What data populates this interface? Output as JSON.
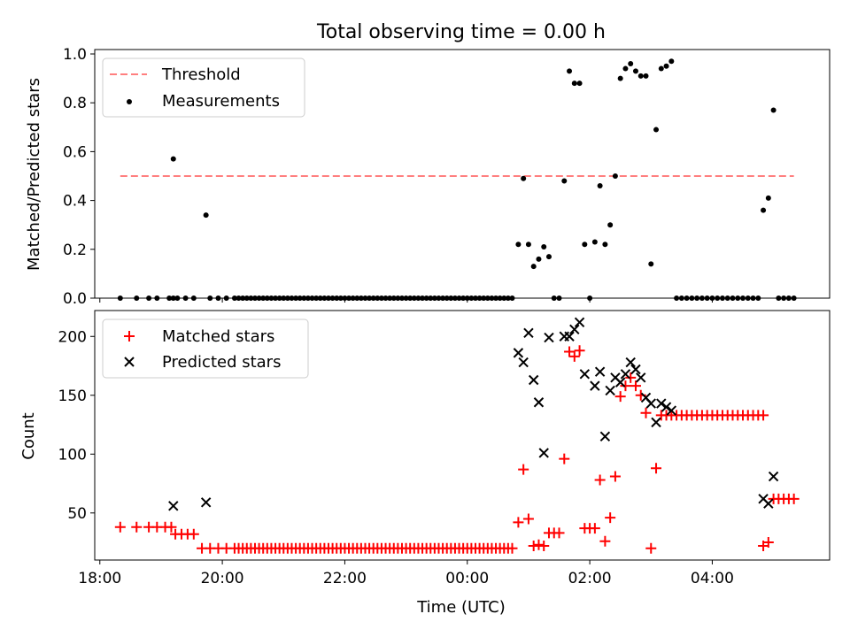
{
  "chart_data": {
    "title": "Total observing time = 0.00 h",
    "xlabel": "Time (UTC)",
    "x_ticks": [
      "18:00",
      "20:00",
      "22:00",
      "00:00",
      "02:00",
      "04:00"
    ],
    "top": {
      "type": "scatter",
      "ylabel": "Matched/Predicted stars",
      "ylim": [
        0,
        1.0
      ],
      "y_ticks": [
        "0.0",
        "0.2",
        "0.4",
        "0.6",
        "0.8",
        "1.0"
      ],
      "legend_position": "upper left",
      "legend": {
        "threshold": "Threshold",
        "measurements": "Measurements"
      },
      "threshold": {
        "value": 0.5,
        "x_start": "18:20",
        "x_end": "05:20",
        "color": "#ff7f7f"
      },
      "measurements": [
        [
          "18:20",
          0
        ],
        [
          "18:36",
          0
        ],
        [
          "18:48",
          0
        ],
        [
          "18:56",
          0
        ],
        [
          "19:08",
          0
        ],
        [
          "19:12",
          0
        ],
        [
          "19:16",
          0
        ],
        [
          "19:12",
          0.57
        ],
        [
          "19:24",
          0
        ],
        [
          "19:32",
          0
        ],
        [
          "19:44",
          0.34
        ],
        [
          "19:48",
          0
        ],
        [
          "19:56",
          0
        ],
        [
          "20:04",
          0
        ],
        [
          "20:12",
          0
        ],
        [
          "20:16",
          0
        ],
        [
          "20:20",
          0
        ],
        [
          "20:24",
          0
        ],
        [
          "20:28",
          0
        ],
        [
          "20:32",
          0
        ],
        [
          "20:36",
          0
        ],
        [
          "20:40",
          0
        ],
        [
          "20:44",
          0
        ],
        [
          "20:48",
          0
        ],
        [
          "20:52",
          0
        ],
        [
          "20:56",
          0
        ],
        [
          "21:00",
          0
        ],
        [
          "21:04",
          0
        ],
        [
          "21:08",
          0
        ],
        [
          "21:12",
          0
        ],
        [
          "21:16",
          0
        ],
        [
          "21:20",
          0
        ],
        [
          "21:24",
          0
        ],
        [
          "21:28",
          0
        ],
        [
          "21:32",
          0
        ],
        [
          "21:36",
          0
        ],
        [
          "21:40",
          0
        ],
        [
          "21:44",
          0
        ],
        [
          "21:48",
          0
        ],
        [
          "21:52",
          0
        ],
        [
          "21:56",
          0
        ],
        [
          "22:00",
          0
        ],
        [
          "22:04",
          0
        ],
        [
          "22:08",
          0
        ],
        [
          "22:12",
          0
        ],
        [
          "22:16",
          0
        ],
        [
          "22:20",
          0
        ],
        [
          "22:24",
          0
        ],
        [
          "22:28",
          0
        ],
        [
          "22:32",
          0
        ],
        [
          "22:36",
          0
        ],
        [
          "22:40",
          0
        ],
        [
          "22:44",
          0
        ],
        [
          "22:48",
          0
        ],
        [
          "22:52",
          0
        ],
        [
          "22:56",
          0
        ],
        [
          "23:00",
          0
        ],
        [
          "23:04",
          0
        ],
        [
          "23:08",
          0
        ],
        [
          "23:12",
          0
        ],
        [
          "23:16",
          0
        ],
        [
          "23:20",
          0
        ],
        [
          "23:24",
          0
        ],
        [
          "23:28",
          0
        ],
        [
          "23:32",
          0
        ],
        [
          "23:36",
          0
        ],
        [
          "23:40",
          0
        ],
        [
          "23:44",
          0
        ],
        [
          "23:48",
          0
        ],
        [
          "23:52",
          0
        ],
        [
          "23:56",
          0
        ],
        [
          "00:00",
          0
        ],
        [
          "00:04",
          0
        ],
        [
          "00:08",
          0
        ],
        [
          "00:12",
          0
        ],
        [
          "00:16",
          0
        ],
        [
          "00:20",
          0
        ],
        [
          "00:24",
          0
        ],
        [
          "00:28",
          0
        ],
        [
          "00:32",
          0
        ],
        [
          "00:36",
          0
        ],
        [
          "00:40",
          0
        ],
        [
          "00:44",
          0
        ],
        [
          "00:50",
          0.22
        ],
        [
          "00:55",
          0.49
        ],
        [
          "01:00",
          0.22
        ],
        [
          "01:05",
          0.13
        ],
        [
          "01:10",
          0.16
        ],
        [
          "01:15",
          0.21
        ],
        [
          "01:20",
          0.17
        ],
        [
          "01:25",
          0
        ],
        [
          "01:30",
          0
        ],
        [
          "01:35",
          0.48
        ],
        [
          "01:40",
          0.93
        ],
        [
          "01:45",
          0.88
        ],
        [
          "01:50",
          0.88
        ],
        [
          "01:55",
          0.22
        ],
        [
          "02:00",
          0
        ],
        [
          "02:05",
          0.23
        ],
        [
          "02:10",
          0.46
        ],
        [
          "02:15",
          0.22
        ],
        [
          "02:20",
          0.3
        ],
        [
          "02:25",
          0.5
        ],
        [
          "02:30",
          0.9
        ],
        [
          "02:35",
          0.94
        ],
        [
          "02:40",
          0.96
        ],
        [
          "02:45",
          0.93
        ],
        [
          "02:50",
          0.91
        ],
        [
          "02:55",
          0.91
        ],
        [
          "03:00",
          0.14
        ],
        [
          "03:05",
          0.69
        ],
        [
          "03:10",
          0.94
        ],
        [
          "03:15",
          0.95
        ],
        [
          "03:20",
          0.97
        ],
        [
          "03:25",
          0
        ],
        [
          "03:30",
          0
        ],
        [
          "03:35",
          0
        ],
        [
          "03:40",
          0
        ],
        [
          "03:45",
          0
        ],
        [
          "03:50",
          0
        ],
        [
          "03:55",
          0
        ],
        [
          "04:00",
          0
        ],
        [
          "04:05",
          0
        ],
        [
          "04:10",
          0
        ],
        [
          "04:15",
          0
        ],
        [
          "04:20",
          0
        ],
        [
          "04:25",
          0
        ],
        [
          "04:30",
          0
        ],
        [
          "04:35",
          0
        ],
        [
          "04:40",
          0
        ],
        [
          "04:45",
          0
        ],
        [
          "04:50",
          0.36
        ],
        [
          "04:55",
          0.41
        ],
        [
          "05:00",
          0.77
        ],
        [
          "05:05",
          0
        ],
        [
          "05:10",
          0
        ],
        [
          "05:15",
          0
        ],
        [
          "05:20",
          0
        ]
      ]
    },
    "bottom": {
      "type": "scatter",
      "ylabel": "Count",
      "ylim": [
        10,
        222
      ],
      "y_ticks": [
        "50",
        "100",
        "150",
        "200"
      ],
      "legend_position": "upper left",
      "legend": {
        "matched": "Matched stars",
        "predicted": "Predicted stars"
      },
      "colors": {
        "matched": "#ff0000",
        "predicted": "#000000"
      },
      "matched": [
        [
          "18:20",
          38
        ],
        [
          "18:36",
          38
        ],
        [
          "18:48",
          38
        ],
        [
          "18:56",
          38
        ],
        [
          "19:04",
          38
        ],
        [
          "19:10",
          38
        ],
        [
          "19:14",
          32
        ],
        [
          "19:20",
          32
        ],
        [
          "19:26",
          32
        ],
        [
          "19:32",
          32
        ],
        [
          "19:40",
          20
        ],
        [
          "19:48",
          20
        ],
        [
          "19:56",
          20
        ],
        [
          "20:04",
          20
        ],
        [
          "20:12",
          20
        ],
        [
          "20:16",
          20
        ],
        [
          "20:20",
          20
        ],
        [
          "20:24",
          20
        ],
        [
          "20:28",
          20
        ],
        [
          "20:32",
          20
        ],
        [
          "20:36",
          20
        ],
        [
          "20:40",
          20
        ],
        [
          "20:44",
          20
        ],
        [
          "20:48",
          20
        ],
        [
          "20:52",
          20
        ],
        [
          "20:56",
          20
        ],
        [
          "21:00",
          20
        ],
        [
          "21:04",
          20
        ],
        [
          "21:08",
          20
        ],
        [
          "21:12",
          20
        ],
        [
          "21:16",
          20
        ],
        [
          "21:20",
          20
        ],
        [
          "21:24",
          20
        ],
        [
          "21:28",
          20
        ],
        [
          "21:32",
          20
        ],
        [
          "21:36",
          20
        ],
        [
          "21:40",
          20
        ],
        [
          "21:44",
          20
        ],
        [
          "21:48",
          20
        ],
        [
          "21:52",
          20
        ],
        [
          "21:56",
          20
        ],
        [
          "22:00",
          20
        ],
        [
          "22:04",
          20
        ],
        [
          "22:08",
          20
        ],
        [
          "22:12",
          20
        ],
        [
          "22:16",
          20
        ],
        [
          "22:20",
          20
        ],
        [
          "22:24",
          20
        ],
        [
          "22:28",
          20
        ],
        [
          "22:32",
          20
        ],
        [
          "22:36",
          20
        ],
        [
          "22:40",
          20
        ],
        [
          "22:44",
          20
        ],
        [
          "22:48",
          20
        ],
        [
          "22:52",
          20
        ],
        [
          "22:56",
          20
        ],
        [
          "23:00",
          20
        ],
        [
          "23:04",
          20
        ],
        [
          "23:08",
          20
        ],
        [
          "23:12",
          20
        ],
        [
          "23:16",
          20
        ],
        [
          "23:20",
          20
        ],
        [
          "23:24",
          20
        ],
        [
          "23:28",
          20
        ],
        [
          "23:32",
          20
        ],
        [
          "23:36",
          20
        ],
        [
          "23:40",
          20
        ],
        [
          "23:44",
          20
        ],
        [
          "23:48",
          20
        ],
        [
          "23:52",
          20
        ],
        [
          "23:56",
          20
        ],
        [
          "00:00",
          20
        ],
        [
          "00:04",
          20
        ],
        [
          "00:08",
          20
        ],
        [
          "00:12",
          20
        ],
        [
          "00:16",
          20
        ],
        [
          "00:20",
          20
        ],
        [
          "00:24",
          20
        ],
        [
          "00:28",
          20
        ],
        [
          "00:32",
          20
        ],
        [
          "00:36",
          20
        ],
        [
          "00:40",
          20
        ],
        [
          "00:44",
          20
        ],
        [
          "00:50",
          42
        ],
        [
          "00:55",
          87
        ],
        [
          "01:00",
          45
        ],
        [
          "01:05",
          22
        ],
        [
          "01:10",
          23
        ],
        [
          "01:15",
          22
        ],
        [
          "01:20",
          33
        ],
        [
          "01:25",
          33
        ],
        [
          "01:30",
          33
        ],
        [
          "01:35",
          96
        ],
        [
          "01:40",
          187
        ],
        [
          "01:45",
          183
        ],
        [
          "01:50",
          188
        ],
        [
          "01:55",
          37
        ],
        [
          "02:00",
          37
        ],
        [
          "02:05",
          37
        ],
        [
          "02:10",
          78
        ],
        [
          "02:15",
          26
        ],
        [
          "02:20",
          46
        ],
        [
          "02:25",
          81
        ],
        [
          "02:30",
          149
        ],
        [
          "02:35",
          158
        ],
        [
          "02:40",
          165
        ],
        [
          "02:45",
          158
        ],
        [
          "02:50",
          150
        ],
        [
          "02:55",
          135
        ],
        [
          "03:00",
          20
        ],
        [
          "03:05",
          88
        ],
        [
          "03:10",
          133
        ],
        [
          "03:15",
          133
        ],
        [
          "03:20",
          133
        ],
        [
          "03:25",
          133
        ],
        [
          "03:30",
          133
        ],
        [
          "03:35",
          133
        ],
        [
          "03:40",
          133
        ],
        [
          "03:45",
          133
        ],
        [
          "03:50",
          133
        ],
        [
          "03:55",
          133
        ],
        [
          "04:00",
          133
        ],
        [
          "04:05",
          133
        ],
        [
          "04:10",
          133
        ],
        [
          "04:15",
          133
        ],
        [
          "04:20",
          133
        ],
        [
          "04:25",
          133
        ],
        [
          "04:30",
          133
        ],
        [
          "04:35",
          133
        ],
        [
          "04:40",
          133
        ],
        [
          "04:45",
          133
        ],
        [
          "04:50",
          133
        ],
        [
          "04:50",
          22
        ],
        [
          "04:55",
          25
        ],
        [
          "05:00",
          62
        ],
        [
          "05:05",
          62
        ],
        [
          "05:10",
          62
        ],
        [
          "05:15",
          62
        ],
        [
          "05:20",
          62
        ]
      ],
      "predicted": [
        [
          "19:12",
          56
        ],
        [
          "19:44",
          59
        ],
        [
          "00:50",
          186
        ],
        [
          "00:55",
          178
        ],
        [
          "01:00",
          203
        ],
        [
          "01:05",
          163
        ],
        [
          "01:10",
          144
        ],
        [
          "01:15",
          101
        ],
        [
          "01:20",
          199
        ],
        [
          "01:35",
          200
        ],
        [
          "01:40",
          200
        ],
        [
          "01:45",
          206
        ],
        [
          "01:50",
          212
        ],
        [
          "01:55",
          168
        ],
        [
          "02:05",
          158
        ],
        [
          "02:10",
          170
        ],
        [
          "02:15",
          115
        ],
        [
          "02:20",
          154
        ],
        [
          "02:25",
          165
        ],
        [
          "02:30",
          161
        ],
        [
          "02:35",
          168
        ],
        [
          "02:40",
          178
        ],
        [
          "02:45",
          172
        ],
        [
          "02:50",
          165
        ],
        [
          "02:55",
          148
        ],
        [
          "03:00",
          143
        ],
        [
          "03:05",
          127
        ],
        [
          "03:10",
          143
        ],
        [
          "03:15",
          140
        ],
        [
          "03:20",
          137
        ],
        [
          "04:50",
          62
        ],
        [
          "04:55",
          58
        ],
        [
          "05:00",
          81
        ]
      ]
    }
  }
}
